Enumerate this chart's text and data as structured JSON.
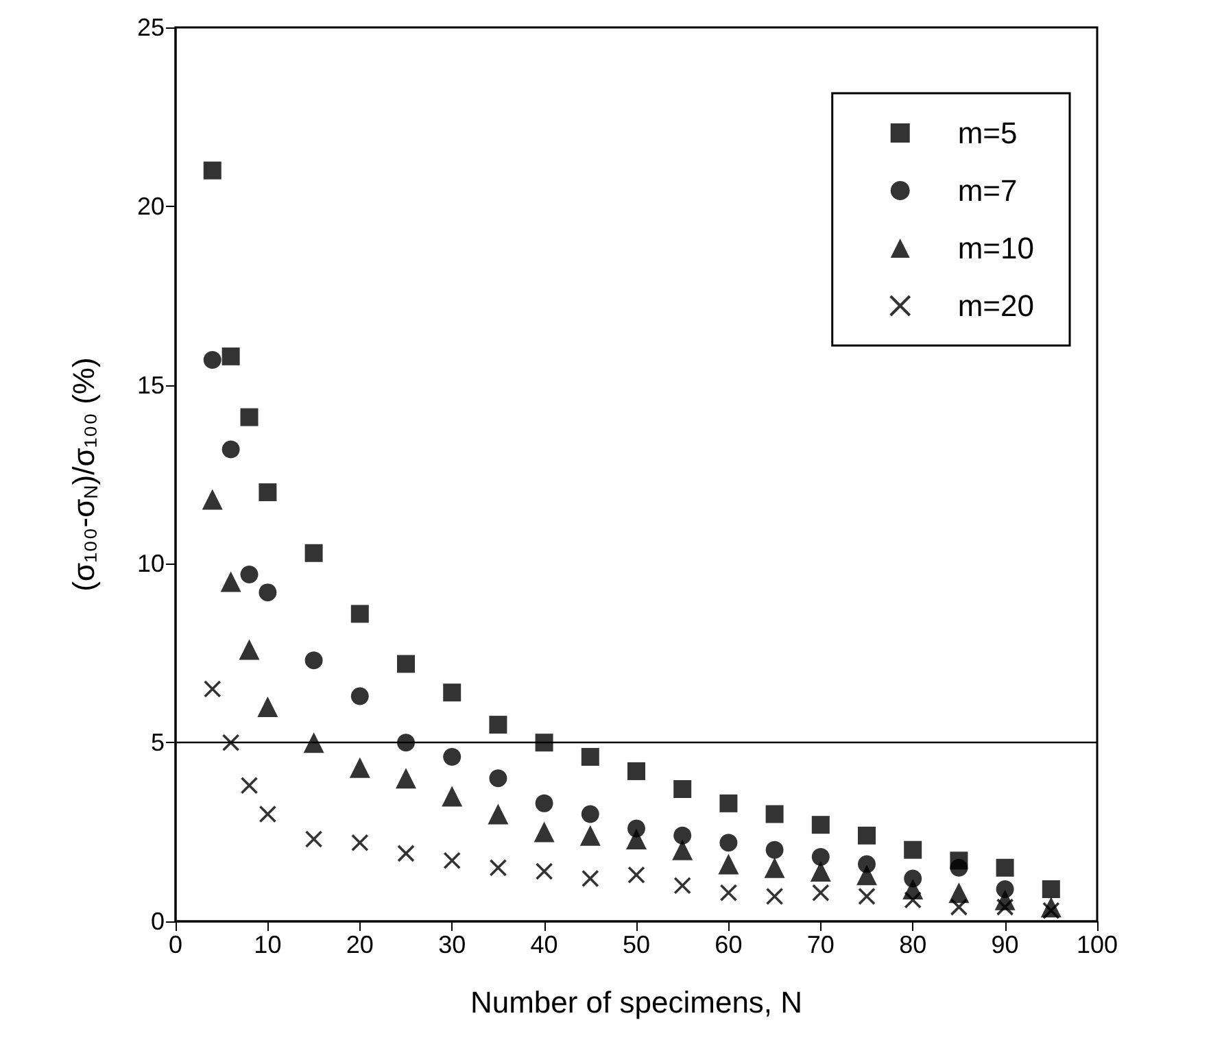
{
  "chart_data": {
    "type": "scatter",
    "xlabel": "Number of specimens, N",
    "ylabel": "(σ₁₀₀-σ$_{N}$)/σ₁₀₀ (%)",
    "x": [
      4,
      6,
      8,
      10,
      15,
      20,
      25,
      30,
      35,
      40,
      45,
      50,
      55,
      60,
      65,
      70,
      75,
      80,
      85,
      90,
      95
    ],
    "series": [
      {
        "name": "m=5",
        "color": "#000000",
        "marker": "square",
        "values": [
          21.0,
          15.8,
          14.1,
          12.0,
          10.3,
          8.6,
          7.2,
          6.4,
          5.5,
          5.0,
          4.6,
          4.2,
          3.7,
          3.3,
          3.0,
          2.7,
          2.4,
          2.0,
          1.7,
          1.5,
          0.9
        ]
      },
      {
        "name": "m=7",
        "color": "#000000",
        "marker": "circle",
        "values": [
          15.7,
          13.2,
          9.7,
          9.2,
          7.3,
          6.3,
          5.0,
          4.6,
          4.0,
          3.3,
          3.0,
          2.6,
          2.4,
          2.2,
          2.0,
          1.8,
          1.6,
          1.2,
          1.5,
          0.9,
          null
        ]
      },
      {
        "name": "m=10",
        "color": "#000000",
        "marker": "triangle",
        "values": [
          11.8,
          9.5,
          7.6,
          6.0,
          5.0,
          4.3,
          4.0,
          3.5,
          3.0,
          2.5,
          2.4,
          2.3,
          2.0,
          1.6,
          1.5,
          1.4,
          1.3,
          0.9,
          0.8,
          0.6,
          0.4
        ]
      },
      {
        "name": "m=20",
        "color": "#000000",
        "marker": "cross",
        "values": [
          6.5,
          5.0,
          3.8,
          3.0,
          2.3,
          2.2,
          1.9,
          1.7,
          1.5,
          1.4,
          1.2,
          1.3,
          1.0,
          0.8,
          0.7,
          0.8,
          0.7,
          0.6,
          0.4,
          0.4,
          0.3
        ]
      }
    ],
    "xlim": [
      0,
      100
    ],
    "xticks": [
      0,
      10,
      20,
      30,
      40,
      50,
      60,
      70,
      80,
      90,
      100
    ],
    "ylim": [
      0,
      25
    ],
    "yticks": [
      0,
      5,
      10,
      15,
      20,
      25
    ],
    "ref_lines": [
      {
        "axis": "y",
        "value": 5,
        "color": "#000000"
      }
    ],
    "grid": false,
    "legend": "top right"
  }
}
